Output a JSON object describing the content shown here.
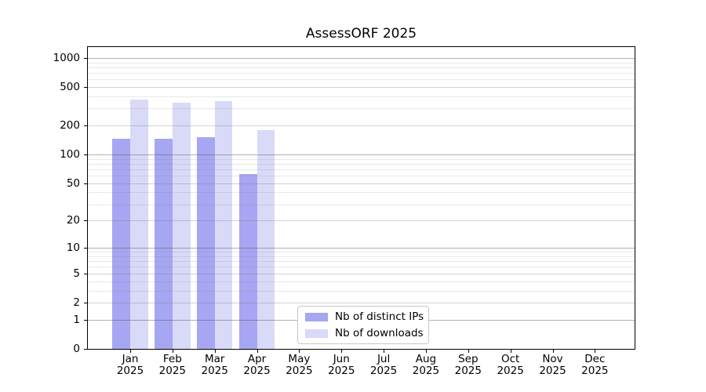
{
  "chart_data": {
    "type": "bar",
    "title": "AssessORF 2025",
    "months": [
      "Jan",
      "Feb",
      "Mar",
      "Apr",
      "May",
      "Jun",
      "Jul",
      "Aug",
      "Sep",
      "Oct",
      "Nov",
      "Dec"
    ],
    "year": "2025",
    "series": [
      {
        "key": "distinct-ips",
        "name": "Nb of distinct IPs",
        "color": "#a6a6f2",
        "values": [
          145,
          145,
          152,
          63,
          null,
          null,
          null,
          null,
          null,
          null,
          null,
          null
        ]
      },
      {
        "key": "downloads",
        "name": "Nb of downloads",
        "color": "#d9d9f8",
        "values": [
          371,
          342,
          355,
          180,
          null,
          null,
          null,
          null,
          null,
          null,
          null,
          null
        ]
      }
    ],
    "y_scale": "log10(1+value)",
    "y_ticks": [
      0,
      1,
      2,
      5,
      10,
      20,
      50,
      100,
      200,
      500,
      1000
    ],
    "y_minor_gridlines": [
      3,
      4,
      6,
      7,
      8,
      9,
      30,
      40,
      60,
      70,
      80,
      90,
      300,
      400,
      600,
      700,
      800,
      900
    ],
    "ylim": [
      0,
      1300
    ],
    "grid": "on",
    "legend": {
      "position": "bottom-center",
      "entries": [
        "Nb of distinct IPs",
        "Nb of downloads"
      ]
    }
  },
  "colors": {
    "bar_ips": "#a6a6f2",
    "bar_downloads": "#d9d9f8",
    "grid_power10": "#ababab",
    "grid_major": "#d6d6d6",
    "grid_minor": "#e9e9e9",
    "axis": "#000000",
    "legend_border": "#c8c8c8",
    "background": "#ffffff",
    "text": "#000000"
  }
}
